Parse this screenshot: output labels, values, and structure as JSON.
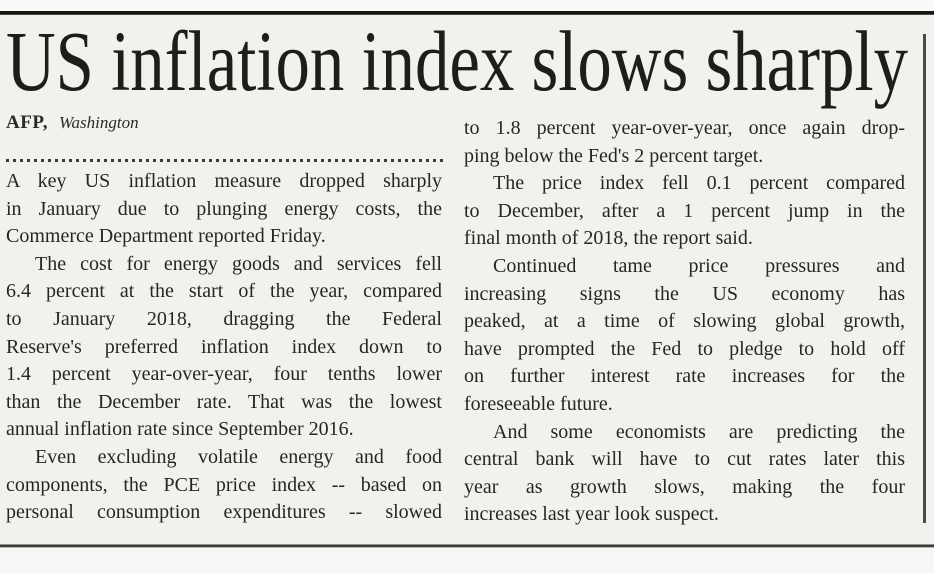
{
  "article": {
    "headline": "US inflation index slows sharply",
    "byline": {
      "source": "AFP,",
      "location": "Washington"
    },
    "columns": [
      {
        "paragraphs": [
          {
            "indent": false,
            "continues": false,
            "lines": [
              "A key US inflation measure dropped sharply",
              "in January due to plunging energy costs, the",
              "Commerce Department reported Friday."
            ]
          },
          {
            "indent": true,
            "continues": false,
            "lines": [
              "The cost for energy goods and services fell",
              "6.4 percent at the start of the year, compared",
              "to January 2018, dragging the Federal",
              "Reserve's preferred inflation index down to",
              "1.4 percent year-over-year, four tenths lower",
              "than the December rate. That was the lowest",
              "annual inflation rate since September 2016."
            ]
          },
          {
            "indent": true,
            "continues": true,
            "lines": [
              "Even excluding volatile energy and food",
              "components, the PCE price index -- based on",
              "personal consumption expenditures -- slowed"
            ]
          }
        ]
      },
      {
        "paragraphs": [
          {
            "indent": false,
            "continues": false,
            "lines": [
              "to 1.8 percent year-over-year, once again drop-",
              "ping below the Fed's 2 percent target."
            ]
          },
          {
            "indent": true,
            "continues": false,
            "lines": [
              "The price index fell 0.1 percent compared",
              "to December, after a 1 percent jump in the",
              "final month of 2018, the report said."
            ]
          },
          {
            "indent": true,
            "continues": false,
            "lines": [
              "Continued tame price pressures and",
              "increasing signs the US economy has",
              "peaked, at a time of slowing global growth,",
              "have prompted the Fed to pledge to hold off",
              "on further interest rate increases for the",
              "foreseeable future."
            ]
          },
          {
            "indent": true,
            "continues": false,
            "lines": [
              "And some economists are predicting the",
              "central bank will have to cut rates later this",
              "year as growth slows, making the four",
              "increases last year look suspect."
            ]
          }
        ]
      }
    ]
  },
  "colors": {
    "paper": "#f1f1ee",
    "ink": "#262622",
    "rule": "#3c3c38"
  }
}
